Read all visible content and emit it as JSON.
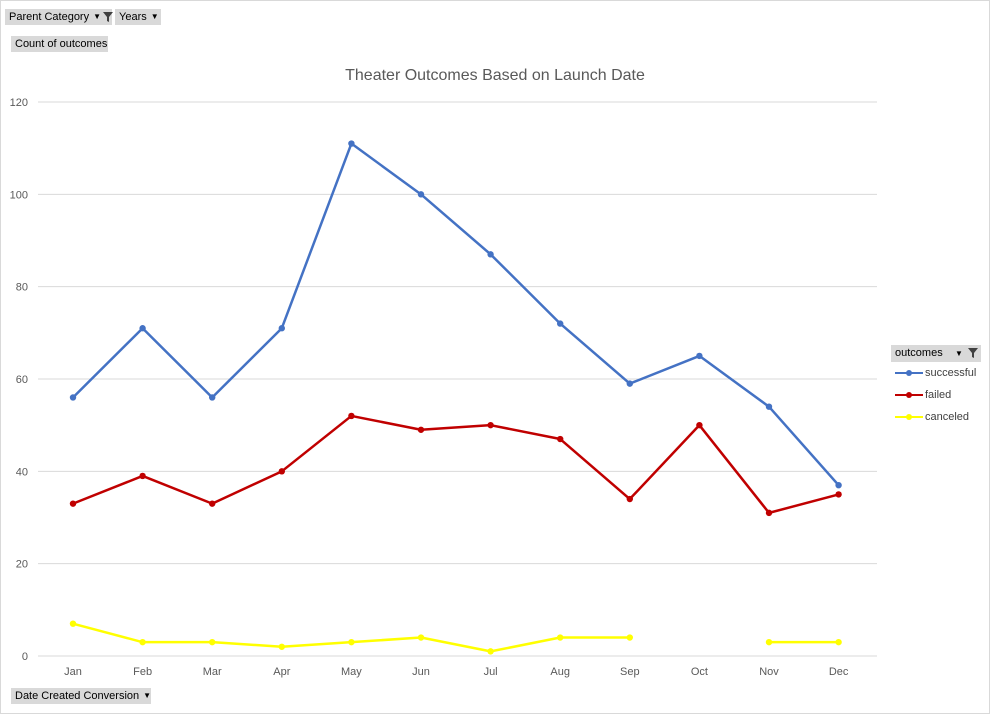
{
  "filters": {
    "parent_category": "Parent Category",
    "years": "Years",
    "values_field": "Count of outcomes",
    "axis_field": "Date Created Conversion"
  },
  "legend": {
    "header": "outcomes"
  },
  "colors": {
    "successful": "#4472c4",
    "failed": "#c00000",
    "canceled": "#ffff00",
    "grid": "#d9d9d9",
    "pill": "#d9d9d9"
  },
  "chart_data": {
    "type": "line",
    "title": "Theater Outcomes Based on Launch Date",
    "xlabel": "",
    "ylabel": "",
    "categories": [
      "Jan",
      "Feb",
      "Mar",
      "Apr",
      "May",
      "Jun",
      "Jul",
      "Aug",
      "Sep",
      "Oct",
      "Nov",
      "Dec"
    ],
    "ylim": [
      0,
      120
    ],
    "yticks": [
      0,
      20,
      40,
      60,
      80,
      100,
      120
    ],
    "grid": true,
    "legend_position": "right",
    "series": [
      {
        "name": "successful",
        "values": [
          56,
          71,
          56,
          71,
          111,
          100,
          87,
          72,
          59,
          65,
          54,
          37
        ]
      },
      {
        "name": "failed",
        "values": [
          33,
          39,
          33,
          40,
          52,
          49,
          50,
          47,
          34,
          50,
          31,
          35
        ]
      },
      {
        "name": "canceled",
        "values": [
          7,
          3,
          3,
          2,
          3,
          4,
          1,
          4,
          4,
          null,
          3,
          3
        ]
      }
    ]
  }
}
